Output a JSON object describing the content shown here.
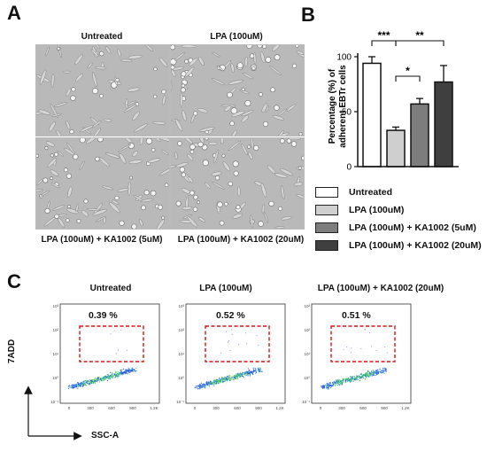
{
  "panels": {
    "a": "A",
    "b": "B",
    "c": "C"
  },
  "panel_a": {
    "titles": [
      "Untreated",
      "LPA (100uM)",
      "LPA (100uM) + KA1002 (5uM)",
      "LPA (100uM) + KA1002 (20uM)"
    ]
  },
  "chart_data": {
    "type": "bar",
    "ylabel": "Percentage (%) of adherent EBTr cells",
    "ylim": [
      0,
      100
    ],
    "yticks": [
      "0",
      "50",
      "100"
    ],
    "series": [
      {
        "name": "Untreated",
        "value": 94,
        "error": 6,
        "color": "#ffffff"
      },
      {
        "name": "LPA (100uM)",
        "value": 33,
        "error": 3,
        "color": "#cfcfcf"
      },
      {
        "name": "LPA (100uM) + KA1002 (5uM)",
        "value": 57,
        "error": 5,
        "color": "#7d7d7d"
      },
      {
        "name": "LPA (100uM) + KA1002 (20uM)",
        "value": 77,
        "error": 15,
        "color": "#3f3f3f"
      }
    ],
    "significance": [
      {
        "pair": [
          0,
          1
        ],
        "label": "***"
      },
      {
        "pair": [
          1,
          3
        ],
        "label": "**"
      },
      {
        "pair": [
          1,
          2
        ],
        "label": "*"
      }
    ]
  },
  "panel_c": {
    "x_axis_label": "SSC-A",
    "y_axis_label": "7ADD",
    "plots": [
      {
        "title": "Untreated",
        "percent": "0.39 %"
      },
      {
        "title": "LPA (100uM)",
        "percent": "0.52 %"
      },
      {
        "title": "LPA (100uM) + KA1002 (20uM)",
        "percent": "0.51 %"
      }
    ],
    "x_ticks": [
      "0",
      "300",
      "600",
      "900",
      "1.2K"
    ],
    "y_ticks": [
      "10³",
      "10²",
      "10¹",
      "10⁰",
      "10⁻¹"
    ]
  }
}
